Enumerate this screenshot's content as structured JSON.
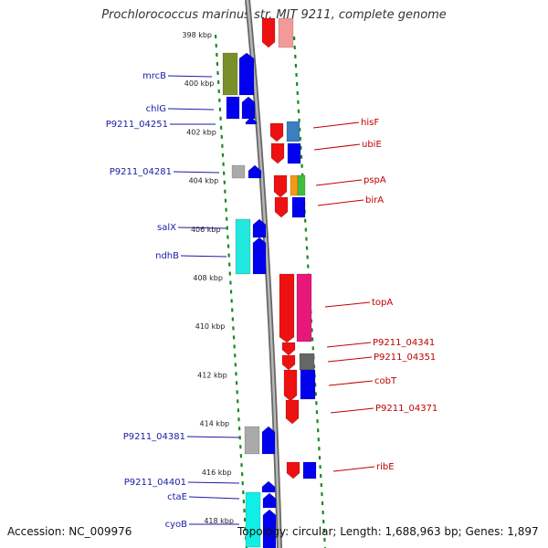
{
  "title": "Prochlorococcus marinus str. MIT 9211, complete genome",
  "footer": {
    "accession": "Accession: NC_009976",
    "summary": "Topology: circular; Length: 1,688,963 bp; Genes: 1,897"
  },
  "colors": {
    "forward_strand": "#0000ee",
    "reverse_strand": "#ee0000",
    "dotted_border": "#1a8a1a",
    "backbone": "#999999",
    "label_left": "#1a1aa6",
    "label_right": "#c00000"
  },
  "ticks": [
    {
      "label": "398 kbp",
      "kbp": 398
    },
    {
      "label": "400 kbp",
      "kbp": 400
    },
    {
      "label": "402 kbp",
      "kbp": 402
    },
    {
      "label": "404 kbp",
      "kbp": 404
    },
    {
      "label": "406 kbp",
      "kbp": 406
    },
    {
      "label": "408 kbp",
      "kbp": 408
    },
    {
      "label": "410 kbp",
      "kbp": 410
    },
    {
      "label": "412 kbp",
      "kbp": 412
    },
    {
      "label": "414 kbp",
      "kbp": 414
    },
    {
      "label": "416 kbp",
      "kbp": 416
    },
    {
      "label": "418 kbp",
      "kbp": 418
    }
  ],
  "genes_forward": [
    {
      "name": "mrcB"
    },
    {
      "name": "chlG"
    },
    {
      "name": "P9211_04251"
    },
    {
      "name": "P9211_04281"
    },
    {
      "name": "salX"
    },
    {
      "name": "ndhB"
    },
    {
      "name": "P9211_04381"
    },
    {
      "name": "P9211_04401"
    },
    {
      "name": "ctaE"
    },
    {
      "name": "cyoB"
    }
  ],
  "genes_reverse": [
    {
      "name": "hisF"
    },
    {
      "name": "ubiE"
    },
    {
      "name": "pspA"
    },
    {
      "name": "birA"
    },
    {
      "name": "topA"
    },
    {
      "name": "P9211_04341"
    },
    {
      "name": "P9211_04351"
    },
    {
      "name": "cobT"
    },
    {
      "name": "P9211_04371"
    },
    {
      "name": "ribE"
    }
  ]
}
